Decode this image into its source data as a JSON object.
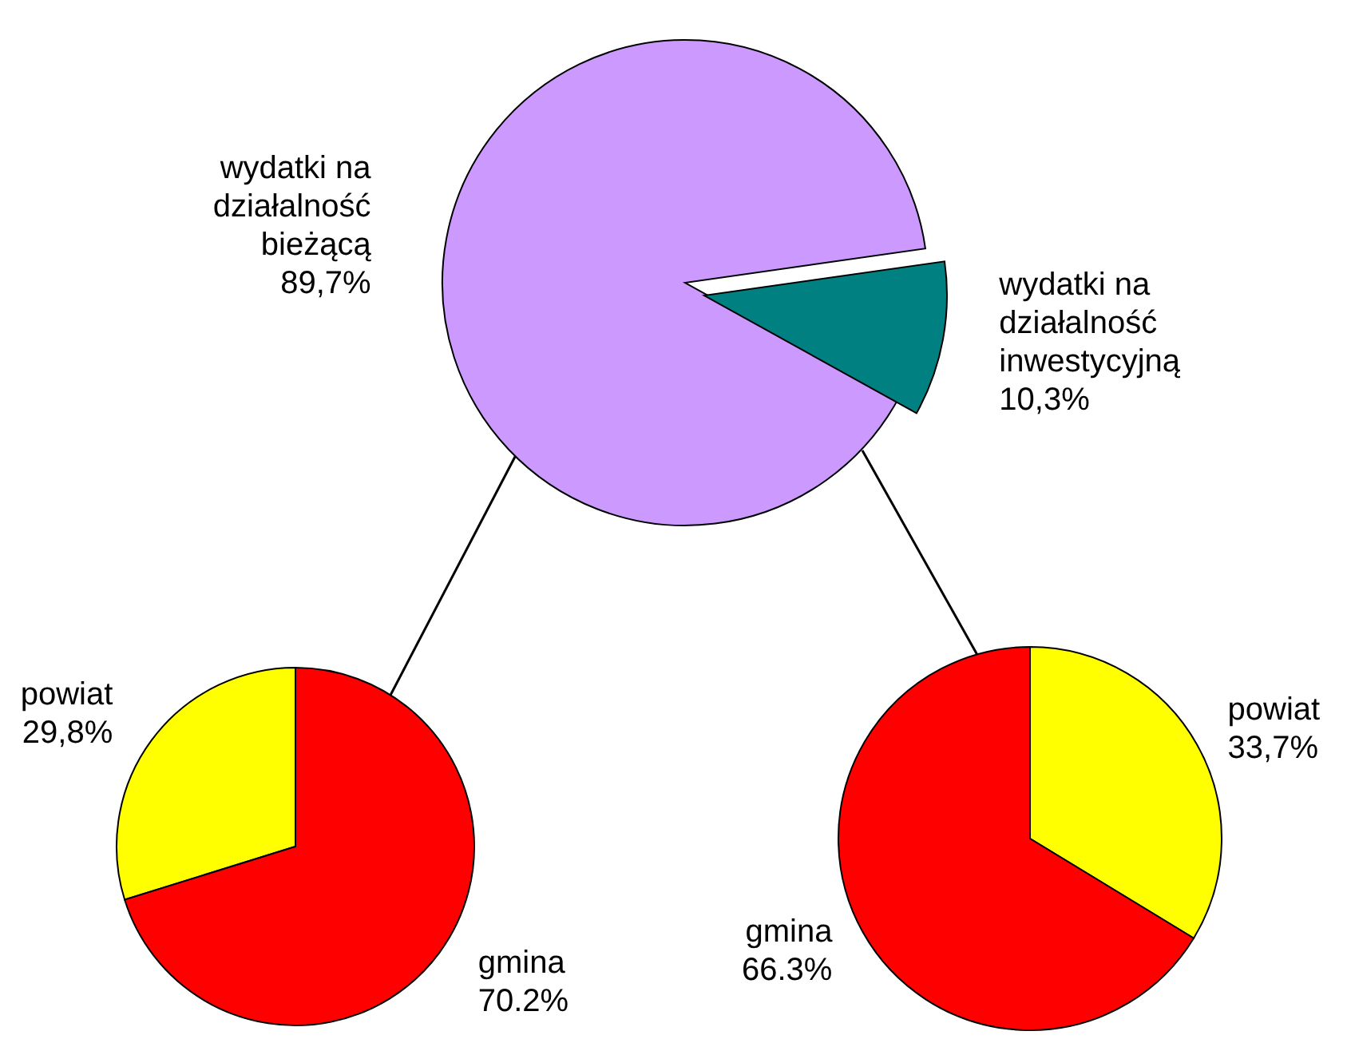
{
  "chart_data": [
    {
      "type": "pie",
      "categories": [
        "wydatki na działalność bieżącą",
        "wydatki na działalność inwestycyjną"
      ],
      "values": [
        89.7,
        10.3
      ],
      "colors": [
        "#cc99ff",
        "#008080"
      ],
      "value_labels": [
        "89,7%",
        "10,3%"
      ],
      "legend": false
    },
    {
      "type": "pie",
      "categories": [
        "powiat",
        "gmina"
      ],
      "values": [
        29.8,
        70.2
      ],
      "colors": [
        "#ffff00",
        "#ff0000"
      ],
      "value_labels": [
        "29,8%",
        "70.2%"
      ],
      "legend": false
    },
    {
      "type": "pie",
      "categories": [
        "powiat",
        "gmina"
      ],
      "values": [
        33.7,
        66.3
      ],
      "colors": [
        "#ffff00",
        "#ff0000"
      ],
      "value_labels": [
        "33,7%",
        "66.3%"
      ],
      "legend": false
    }
  ]
}
